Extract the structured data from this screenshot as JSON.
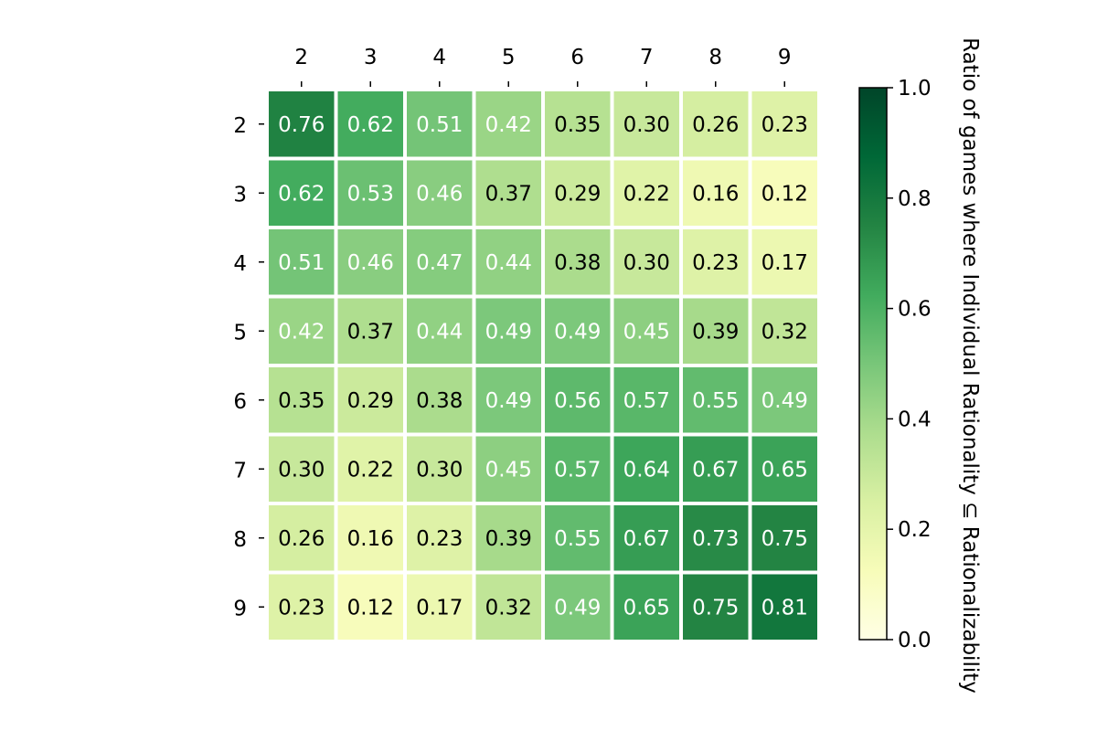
{
  "chart_data": {
    "type": "heatmap",
    "title": "",
    "xlabel": "",
    "ylabel": "",
    "x_categories": [
      "2",
      "3",
      "4",
      "5",
      "6",
      "7",
      "8",
      "9"
    ],
    "y_categories": [
      "2",
      "3",
      "4",
      "5",
      "6",
      "7",
      "8",
      "9"
    ],
    "values": [
      [
        0.76,
        0.62,
        0.51,
        0.42,
        0.35,
        0.3,
        0.26,
        0.23
      ],
      [
        0.62,
        0.53,
        0.46,
        0.37,
        0.29,
        0.22,
        0.16,
        0.12
      ],
      [
        0.51,
        0.46,
        0.47,
        0.44,
        0.38,
        0.3,
        0.23,
        0.17
      ],
      [
        0.42,
        0.37,
        0.44,
        0.49,
        0.49,
        0.45,
        0.39,
        0.32
      ],
      [
        0.35,
        0.29,
        0.38,
        0.49,
        0.56,
        0.57,
        0.55,
        0.49
      ],
      [
        0.3,
        0.22,
        0.3,
        0.45,
        0.57,
        0.64,
        0.67,
        0.65
      ],
      [
        0.26,
        0.16,
        0.23,
        0.39,
        0.55,
        0.67,
        0.73,
        0.75
      ],
      [
        0.23,
        0.12,
        0.17,
        0.32,
        0.49,
        0.65,
        0.75,
        0.81
      ]
    ],
    "value_labels": [
      [
        "0.76",
        "0.62",
        "0.51",
        "0.42",
        "0.35",
        "0.30",
        "0.26",
        "0.23"
      ],
      [
        "0.62",
        "0.53",
        "0.46",
        "0.37",
        "0.29",
        "0.22",
        "0.16",
        "0.12"
      ],
      [
        "0.51",
        "0.46",
        "0.47",
        "0.44",
        "0.38",
        "0.30",
        "0.23",
        "0.17"
      ],
      [
        "0.42",
        "0.37",
        "0.44",
        "0.49",
        "0.49",
        "0.45",
        "0.39",
        "0.32"
      ],
      [
        "0.35",
        "0.29",
        "0.38",
        "0.49",
        "0.56",
        "0.57",
        "0.55",
        "0.49"
      ],
      [
        "0.30",
        "0.22",
        "0.30",
        "0.45",
        "0.57",
        "0.64",
        "0.67",
        "0.65"
      ],
      [
        "0.26",
        "0.16",
        "0.23",
        "0.39",
        "0.55",
        "0.67",
        "0.73",
        "0.75"
      ],
      [
        "0.23",
        "0.12",
        "0.17",
        "0.32",
        "0.49",
        "0.65",
        "0.75",
        "0.81"
      ]
    ],
    "colormap": "YlGn",
    "colormap_stops": [
      "#ffffe5",
      "#f7fcb9",
      "#d9f0a3",
      "#addd8e",
      "#78c679",
      "#41ab5d",
      "#238443",
      "#006837",
      "#004529"
    ],
    "vmin": 0.0,
    "vmax": 1.0,
    "x_tick_position": "top",
    "grid": false,
    "colorbar": {
      "label": "Ratio of games where Individual Rationality ⊆ Rationalizability",
      "ticks": [
        "0.0",
        "0.2",
        "0.4",
        "0.6",
        "0.8",
        "1.0"
      ],
      "placement": "right"
    }
  }
}
